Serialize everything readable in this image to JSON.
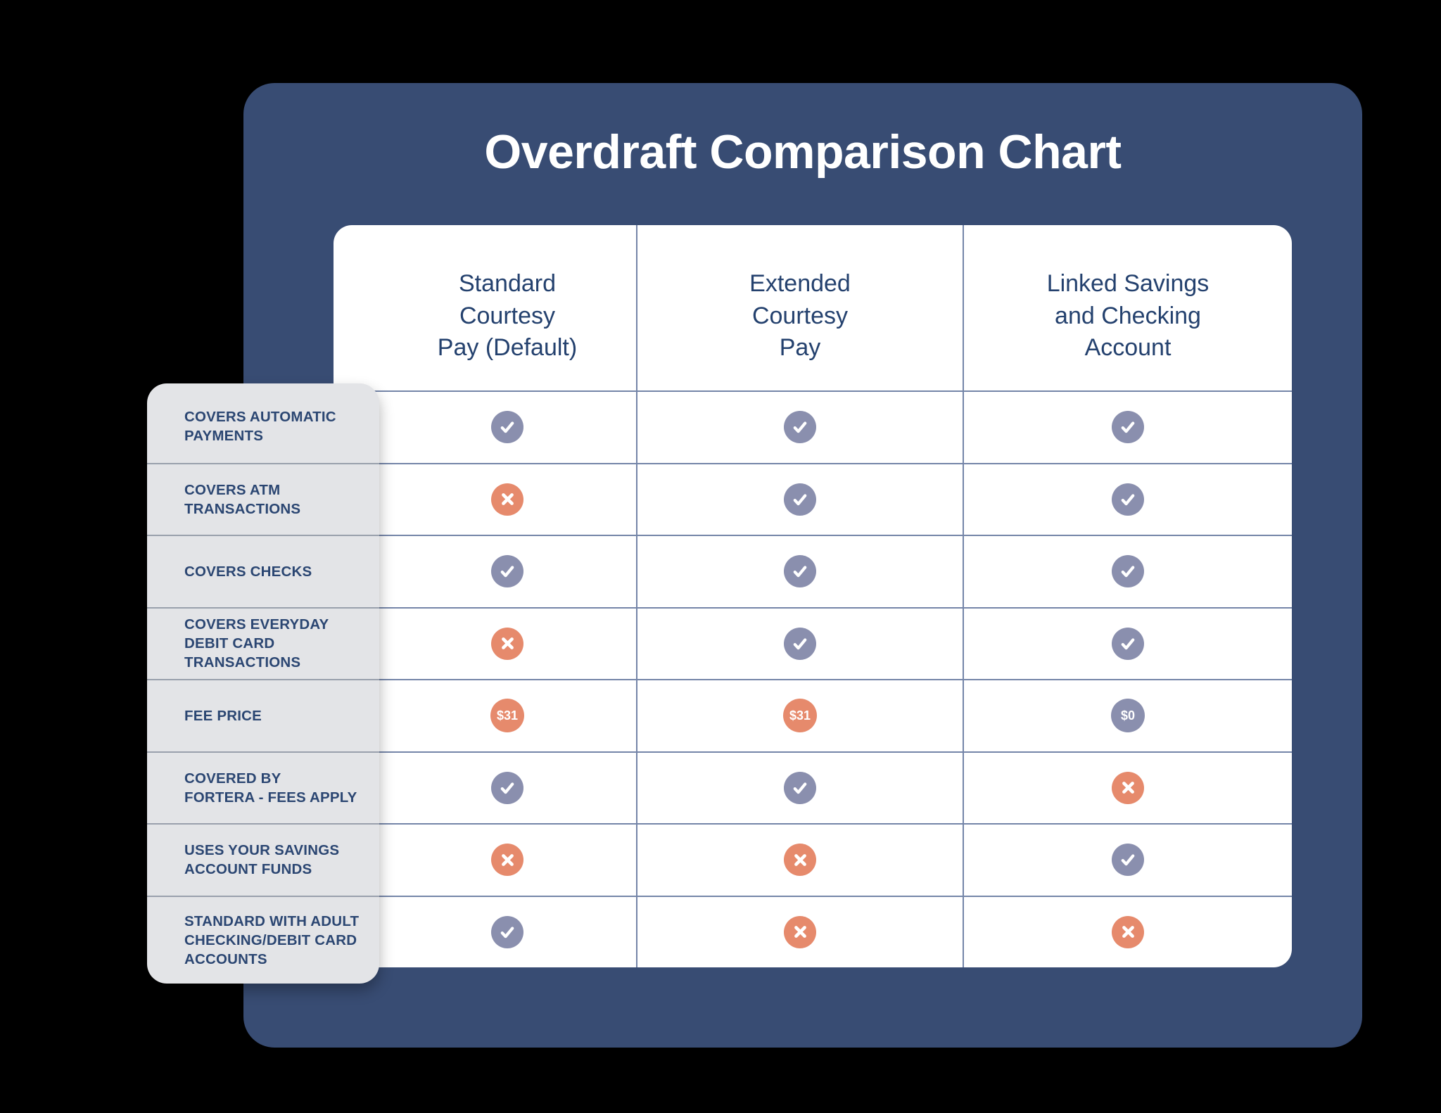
{
  "title": "Overdraft Comparison Chart",
  "columns": [
    {
      "label": "Standard\nCourtesy\nPay (Default)"
    },
    {
      "label": "Extended\nCourtesy\nPay"
    },
    {
      "label": "Linked Savings\nand Checking\nAccount"
    }
  ],
  "rows": [
    {
      "label": "COVERS AUTOMATIC\nPAYMENTS",
      "cells": [
        {
          "type": "check"
        },
        {
          "type": "check"
        },
        {
          "type": "check"
        }
      ]
    },
    {
      "label": "COVERS ATM\nTRANSACTIONS",
      "cells": [
        {
          "type": "x"
        },
        {
          "type": "check"
        },
        {
          "type": "check"
        }
      ]
    },
    {
      "label": "COVERS CHECKS",
      "cells": [
        {
          "type": "check"
        },
        {
          "type": "check"
        },
        {
          "type": "check"
        }
      ]
    },
    {
      "label": "COVERS EVERYDAY\nDEBIT CARD\nTRANSACTIONS",
      "cells": [
        {
          "type": "x"
        },
        {
          "type": "check"
        },
        {
          "type": "check"
        }
      ]
    },
    {
      "label": "FEE PRICE",
      "cells": [
        {
          "type": "fee",
          "text": "$31",
          "tone": "coral"
        },
        {
          "type": "fee",
          "text": "$31",
          "tone": "coral"
        },
        {
          "type": "fee",
          "text": "$0",
          "tone": "slate"
        }
      ]
    },
    {
      "label": "COVERED BY\nFORTERA - FEES APPLY",
      "cells": [
        {
          "type": "check"
        },
        {
          "type": "check"
        },
        {
          "type": "x"
        }
      ]
    },
    {
      "label": "USES YOUR SAVINGS\nACCOUNT FUNDS",
      "cells": [
        {
          "type": "x"
        },
        {
          "type": "x"
        },
        {
          "type": "check"
        }
      ]
    },
    {
      "label": "STANDARD WITH ADULT\nCHECKING/DEBIT CARD\nACCOUNTS",
      "cells": [
        {
          "type": "check"
        },
        {
          "type": "x"
        },
        {
          "type": "x"
        }
      ]
    }
  ],
  "colors": {
    "page_bg": "#000000",
    "card_bg": "#384c73",
    "table_bg": "#ffffff",
    "panel_bg": "#e3e4e7",
    "title": "#ffffff",
    "heading": "#24416e",
    "label": "#2b4672",
    "check": "#8a8fae",
    "x": "#e68a6c",
    "divider": "#7485a8",
    "panel_divider": "#99a0ac"
  },
  "chart_data": {
    "type": "table",
    "title": "Overdraft Comparison Chart",
    "columns": [
      "Standard Courtesy Pay (Default)",
      "Extended Courtesy Pay",
      "Linked Savings and Checking Account"
    ],
    "rows": [
      {
        "feature": "Covers Automatic Payments",
        "values": [
          "yes",
          "yes",
          "yes"
        ]
      },
      {
        "feature": "Covers ATM Transactions",
        "values": [
          "no",
          "yes",
          "yes"
        ]
      },
      {
        "feature": "Covers Checks",
        "values": [
          "yes",
          "yes",
          "yes"
        ]
      },
      {
        "feature": "Covers Everyday Debit Card Transactions",
        "values": [
          "no",
          "yes",
          "yes"
        ]
      },
      {
        "feature": "Fee Price",
        "values": [
          "$31",
          "$31",
          "$0"
        ]
      },
      {
        "feature": "Covered by Fortera - Fees Apply",
        "values": [
          "yes",
          "yes",
          "no"
        ]
      },
      {
        "feature": "Uses Your Savings Account Funds",
        "values": [
          "no",
          "no",
          "yes"
        ]
      },
      {
        "feature": "Standard with Adult Checking/Debit Card Accounts",
        "values": [
          "yes",
          "no",
          "no"
        ]
      }
    ]
  }
}
